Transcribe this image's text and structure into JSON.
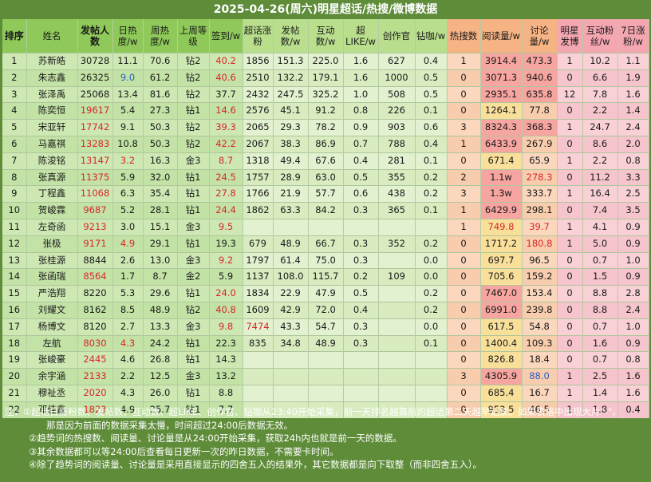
{
  "title": "2025-04-26(周六)明星超话/热搜/微博数据",
  "headers": [
    {
      "label": "排序",
      "band": "green",
      "bold": true
    },
    {
      "label": "姓名",
      "band": "green",
      "bold": false
    },
    {
      "label": "发帖人数",
      "band": "green",
      "bold": true
    },
    {
      "label": "日热度/w",
      "band": "green",
      "bold": false
    },
    {
      "label": "周热度/w",
      "band": "green",
      "bold": false
    },
    {
      "label": "上周等级",
      "band": "green",
      "bold": false
    },
    {
      "label": "签到/w",
      "band": "green",
      "bold": false
    },
    {
      "label": "超话涨粉",
      "band": "lightgreen",
      "bold": false
    },
    {
      "label": "发帖数/w",
      "band": "lightgreen",
      "bold": false
    },
    {
      "label": "互动数/w",
      "band": "lightgreen",
      "bold": false
    },
    {
      "label": "超LIKE/w",
      "band": "lightgreen",
      "bold": false
    },
    {
      "label": "创作官",
      "band": "lightgreen",
      "bold": false
    },
    {
      "label": "钻咖/w",
      "band": "lightgreen",
      "bold": false
    },
    {
      "label": "热搜数",
      "band": "orange",
      "bold": false
    },
    {
      "label": "阅读量/w",
      "band": "orange",
      "bold": false
    },
    {
      "label": "讨论量/w",
      "band": "orange",
      "bold": false
    },
    {
      "label": "明星发博",
      "band": "pink",
      "bold": false
    },
    {
      "label": "互动粉丝/w",
      "band": "pink",
      "bold": false
    },
    {
      "label": "7日涨粉/w",
      "band": "pink",
      "bold": false
    }
  ],
  "rows": [
    [
      "1",
      "苏新皓",
      "30728",
      "11.1",
      "70.6",
      "钻2",
      "40.2",
      "1856",
      "151.3",
      "225.0",
      "1.6",
      "627",
      "0.4",
      "1",
      "3914.4",
      "473.3",
      "1",
      "10.2",
      "1.1"
    ],
    [
      "2",
      "朱志鑫",
      "26325",
      "9.0",
      "61.2",
      "钻2",
      "40.6",
      "2510",
      "132.2",
      "179.1",
      "1.6",
      "1000",
      "0.5",
      "0",
      "3071.3",
      "940.6",
      "0",
      "6.6",
      "1.9"
    ],
    [
      "3",
      "张泽禹",
      "25068",
      "13.4",
      "81.6",
      "钻2",
      "37.7",
      "2432",
      "247.5",
      "325.2",
      "1.0",
      "508",
      "0.5",
      "0",
      "2935.1",
      "635.8",
      "12",
      "7.8",
      "1.6"
    ],
    [
      "4",
      "陈奕恒",
      "19617",
      "5.4",
      "27.3",
      "钻1",
      "14.6",
      "2576",
      "45.1",
      "91.2",
      "0.8",
      "226",
      "0.1",
      "0",
      "1264.1",
      "77.8",
      "0",
      "2.2",
      "1.4"
    ],
    [
      "5",
      "宋亚轩",
      "17742",
      "9.1",
      "50.3",
      "钻2",
      "39.3",
      "2065",
      "29.3",
      "78.2",
      "0.9",
      "903",
      "0.6",
      "3",
      "8324.3",
      "368.3",
      "1",
      "24.7",
      "2.4"
    ],
    [
      "6",
      "马嘉祺",
      "13283",
      "10.8",
      "50.3",
      "钻2",
      "42.2",
      "2067",
      "38.3",
      "86.9",
      "0.7",
      "788",
      "0.4",
      "1",
      "6433.9",
      "267.9",
      "0",
      "8.6",
      "2.0"
    ],
    [
      "7",
      "陈浚铭",
      "13147",
      "3.2",
      "16.3",
      "金3",
      "8.7",
      "1318",
      "49.4",
      "67.6",
      "0.4",
      "281",
      "0.1",
      "0",
      "671.4",
      "65.9",
      "1",
      "2.2",
      "0.8"
    ],
    [
      "8",
      "张真源",
      "11375",
      "5.9",
      "32.0",
      "钻1",
      "24.5",
      "1757",
      "28.9",
      "63.0",
      "0.5",
      "355",
      "0.2",
      "2",
      "1.1w",
      "278.3",
      "0",
      "11.2",
      "3.3"
    ],
    [
      "9",
      "丁程鑫",
      "11068",
      "6.3",
      "35.4",
      "钻1",
      "27.8",
      "1766",
      "21.9",
      "57.7",
      "0.6",
      "438",
      "0.2",
      "3",
      "1.3w",
      "333.7",
      "1",
      "16.4",
      "2.5"
    ],
    [
      "10",
      "贺峻霖",
      "9687",
      "5.2",
      "28.1",
      "钻1",
      "24.4",
      "1862",
      "63.3",
      "84.2",
      "0.3",
      "365",
      "0.1",
      "1",
      "6429.9",
      "298.1",
      "0",
      "7.4",
      "3.5"
    ],
    [
      "11",
      "左奇函",
      "9213",
      "3.0",
      "15.1",
      "金3",
      "9.5",
      "",
      "",
      "",
      "",
      "",
      "",
      "1",
      "749.8",
      "39.7",
      "1",
      "4.1",
      "0.9"
    ],
    [
      "12",
      "张极",
      "9171",
      "4.9",
      "29.1",
      "钻1",
      "19.3",
      "679",
      "48.9",
      "66.7",
      "0.3",
      "352",
      "0.2",
      "0",
      "1717.2",
      "180.8",
      "1",
      "5.0",
      "0.9"
    ],
    [
      "13",
      "张桂源",
      "8844",
      "2.6",
      "13.0",
      "金3",
      "9.2",
      "1797",
      "61.4",
      "75.0",
      "0.3",
      "",
      "0.0",
      "0",
      "697.7",
      "96.5",
      "0",
      "0.7",
      "1.0"
    ],
    [
      "14",
      "张函瑞",
      "8564",
      "1.7",
      "8.7",
      "金2",
      "5.9",
      "1137",
      "108.0",
      "115.7",
      "0.2",
      "109",
      "0.0",
      "0",
      "705.6",
      "159.2",
      "0",
      "1.5",
      "0.9"
    ],
    [
      "15",
      "严浩翔",
      "8220",
      "5.3",
      "29.6",
      "钻1",
      "24.0",
      "1834",
      "22.9",
      "47.9",
      "0.5",
      "",
      "0.2",
      "0",
      "7467.0",
      "153.4",
      "0",
      "8.8",
      "2.8"
    ],
    [
      "16",
      "刘耀文",
      "8162",
      "8.5",
      "48.9",
      "钻2",
      "40.8",
      "1609",
      "42.9",
      "72.0",
      "0.4",
      "",
      "0.2",
      "0",
      "6991.0",
      "239.8",
      "0",
      "8.8",
      "2.4"
    ],
    [
      "17",
      "杨博文",
      "8120",
      "2.7",
      "13.3",
      "金3",
      "9.8",
      "7474",
      "43.3",
      "54.7",
      "0.3",
      "",
      "0.0",
      "0",
      "617.5",
      "54.8",
      "0",
      "0.7",
      "1.0"
    ],
    [
      "18",
      "左航",
      "8030",
      "4.3",
      "24.2",
      "钻1",
      "22.3",
      "835",
      "34.8",
      "48.9",
      "0.3",
      "",
      "0.1",
      "0",
      "1400.4",
      "109.3",
      "0",
      "1.6",
      "0.9"
    ],
    [
      "19",
      "张峻豪",
      "2445",
      "4.6",
      "26.8",
      "钻1",
      "14.3",
      "",
      "",
      "",
      "",
      "",
      "",
      "0",
      "826.8",
      "18.4",
      "0",
      "0.7",
      "0.8"
    ],
    [
      "20",
      "余宇涵",
      "2133",
      "2.2",
      "12.5",
      "金3",
      "13.2",
      "",
      "",
      "",
      "",
      "",
      "",
      "3",
      "4305.9",
      "88.0",
      "1",
      "2.5",
      "1.6"
    ],
    [
      "21",
      "穆祉丞",
      "2020",
      "4.3",
      "26.0",
      "钻1",
      "8.8",
      "",
      "",
      "",
      "",
      "",
      "",
      "0",
      "685.4",
      "16.7",
      "1",
      "1.4",
      "1.6"
    ],
    [
      "22",
      "邓佳鑫",
      "1823",
      "4.9",
      "25.7",
      "钻1",
      "7.7",
      "",
      "",
      "",
      "",
      "",
      "",
      "0",
      "953.5",
      "46.5",
      "1",
      "1.8",
      "0.4"
    ]
  ],
  "notes": [
    "注：①超话日涨粉数、发帖数、互动数、超LIKE、创作官、钻咖从23:40开始采集，前一天排名越靠前的超话第二天越早记录。如果表格中出现大片\"-\"，",
    "那是因为前面的数据采集太慢，时间超过24:00后数据无效。",
    "②趋势词的热搜数、阅读量、讨论量是从24:00开始采集，获取24h内也就是前一天的数据。",
    "③其余数据都可以等24:00后查看每日更新一次的昨日数据，不需要卡时间。",
    "④除了趋势词的阅读量、讨论量是采用直接显示的四舍五入的结果外，其它数据都是向下取整（而非四舍五入）。"
  ],
  "colors": {
    "frame": "#5e8c39",
    "header_green": "#8ec95a",
    "header_lightgreen": "#b9df8d",
    "header_orange": "#f6b383",
    "header_pink": "#f4a6b1",
    "highlight_red": "#d8262b",
    "highlight_blue": "#2b5fc0"
  }
}
